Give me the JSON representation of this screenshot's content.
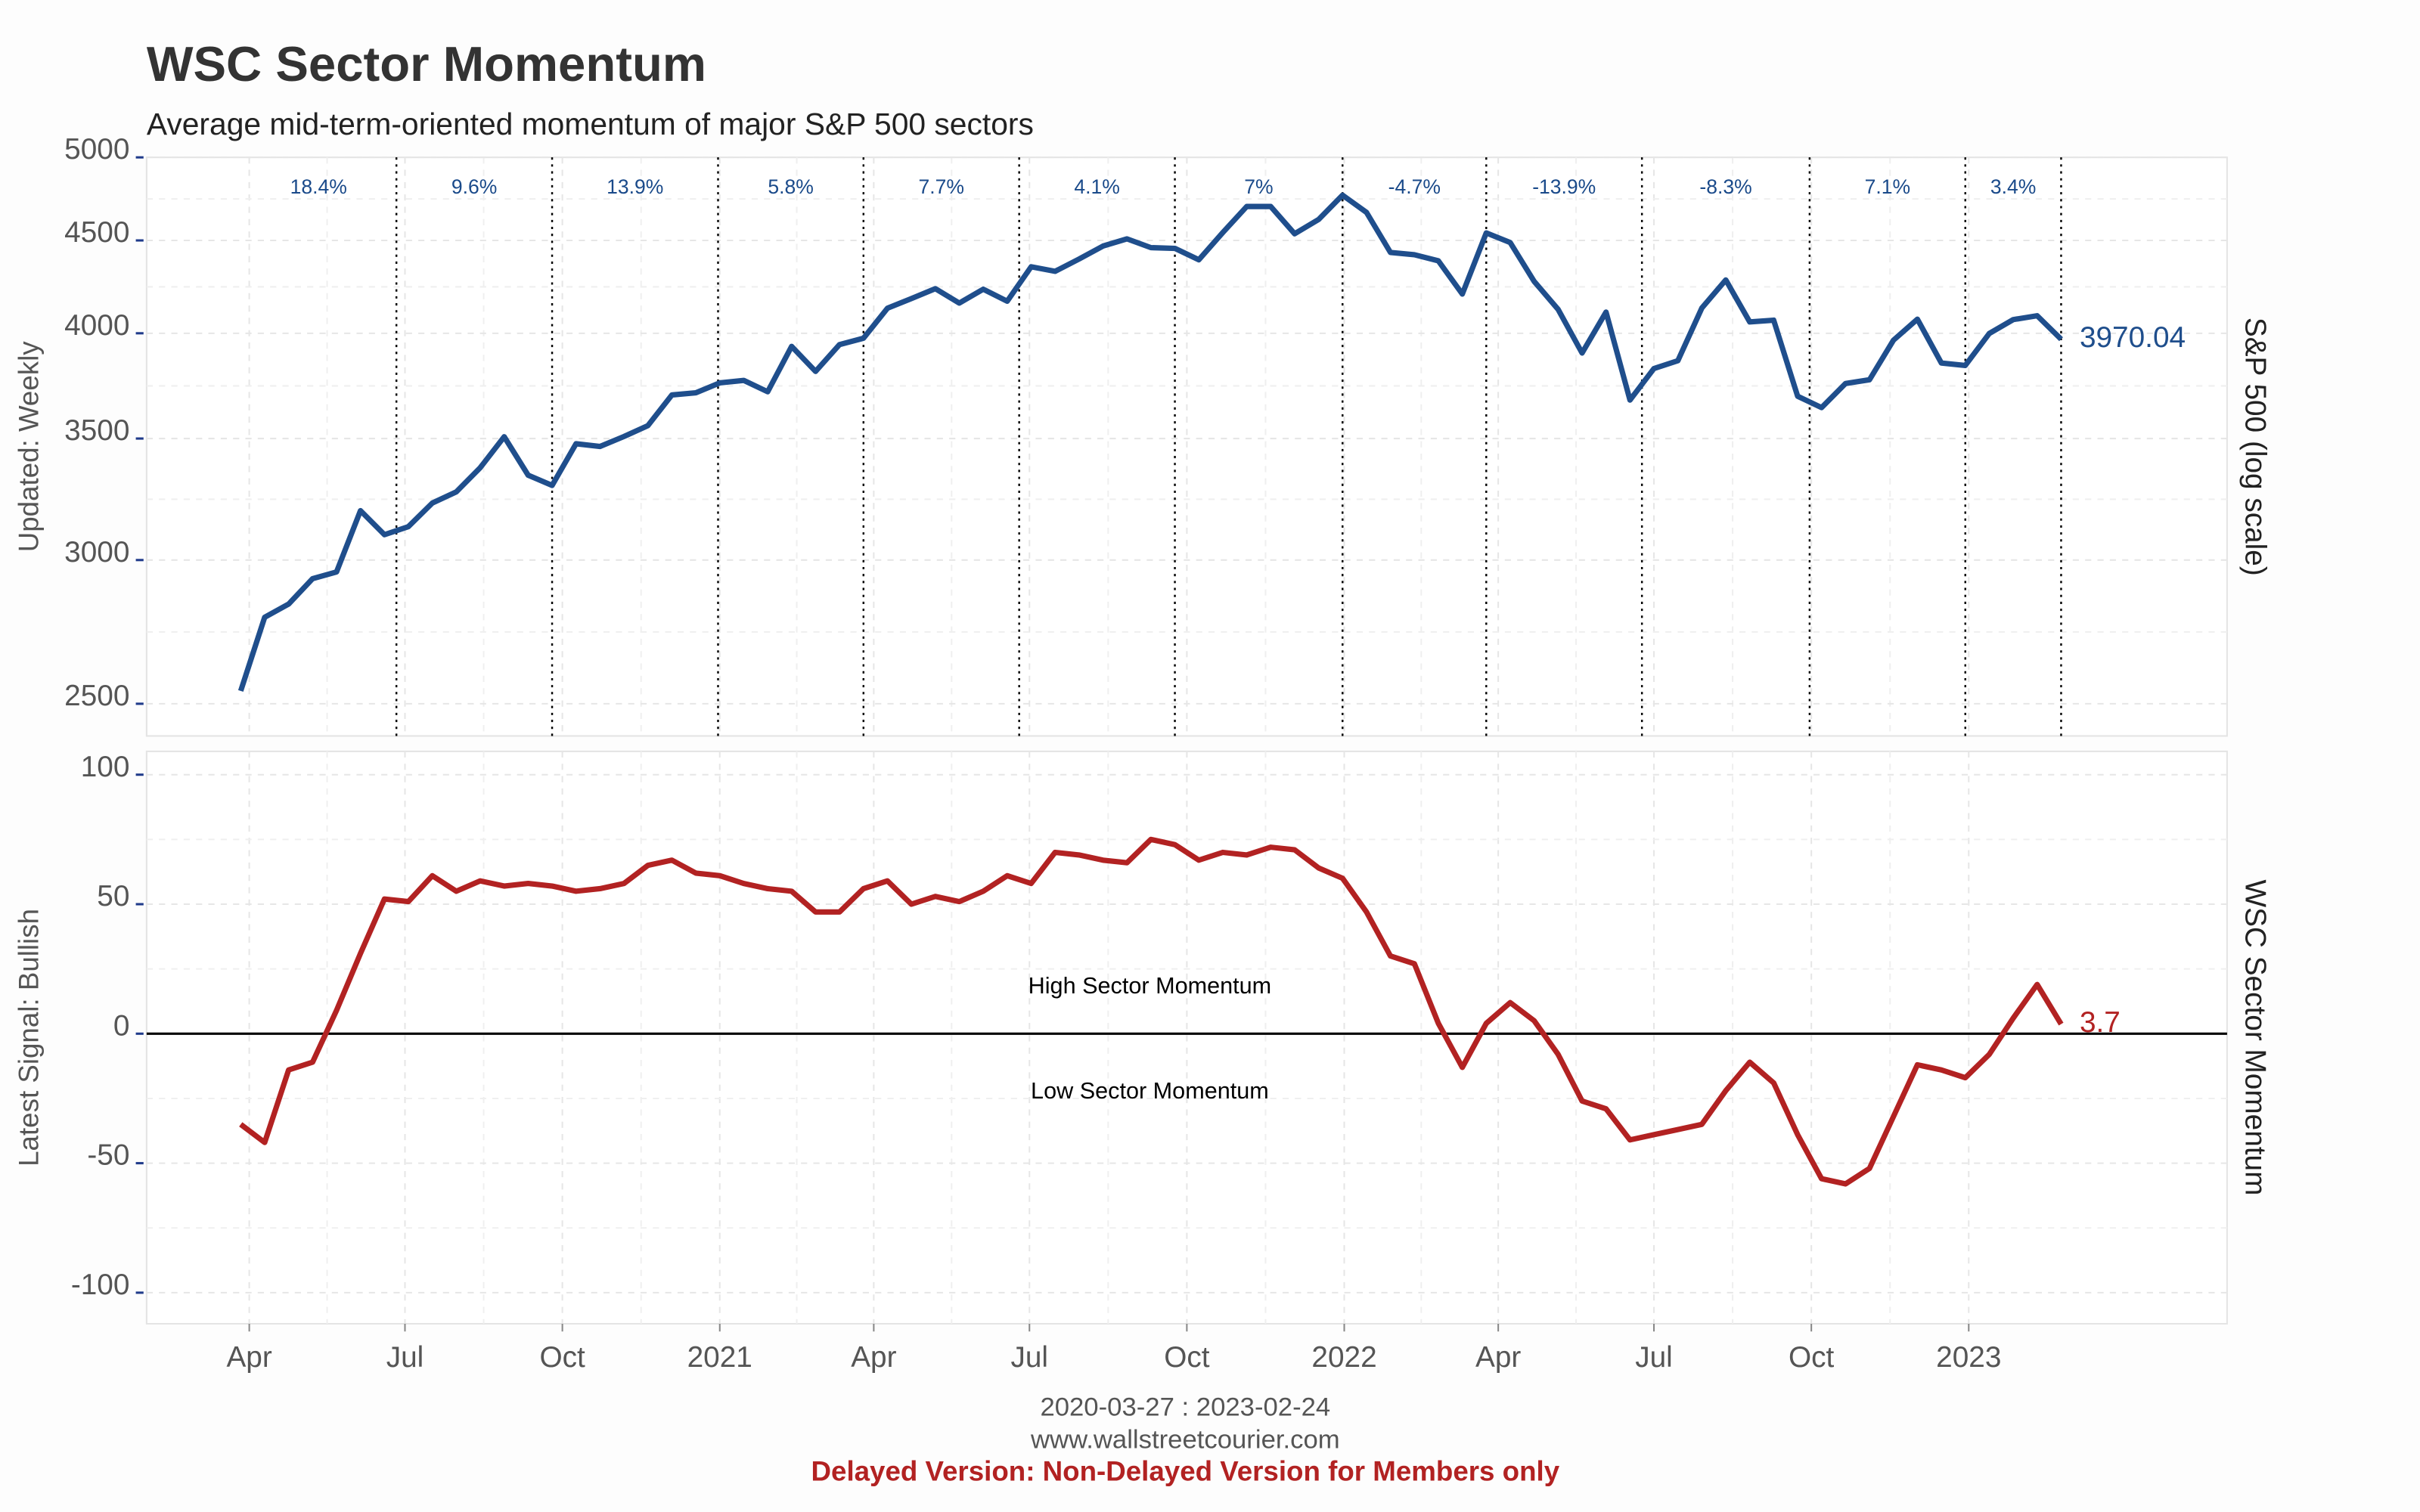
{
  "title": "WSC Sector Momentum",
  "subtitle": "Average mid-term-oriented momentum of major S&P 500 sectors",
  "footer": {
    "date_range": "2020-03-27 : 2023-02-24",
    "source": "www.wallstreetcourier.com",
    "notice": "Delayed Version: Non-Delayed Version for Members only"
  },
  "chart_data": [
    {
      "type": "line",
      "y_label": "Updated: Weekly",
      "y_label_right": "S&P 500 (log scale)",
      "log_scale": true,
      "grid": true,
      "xlim": [
        "2020-02-01",
        "2023-06-01"
      ],
      "ylim": [
        2400,
        5000
      ],
      "yticks": [
        2500,
        3000,
        3500,
        4000,
        4500,
        5000
      ],
      "x": [
        "2020-03-27",
        "2020-04-10",
        "2020-04-24",
        "2020-05-08",
        "2020-05-22",
        "2020-06-05",
        "2020-06-19",
        "2020-07-03",
        "2020-07-17",
        "2020-07-31",
        "2020-08-14",
        "2020-08-28",
        "2020-09-11",
        "2020-09-25",
        "2020-10-09",
        "2020-10-23",
        "2020-11-06",
        "2020-11-20",
        "2020-12-04",
        "2020-12-18",
        "2021-01-01",
        "2021-01-15",
        "2021-01-29",
        "2021-02-12",
        "2021-02-26",
        "2021-03-12",
        "2021-03-26",
        "2021-04-09",
        "2021-04-23",
        "2021-05-07",
        "2021-05-21",
        "2021-06-04",
        "2021-06-18",
        "2021-07-02",
        "2021-07-16",
        "2021-07-30",
        "2021-08-13",
        "2021-08-27",
        "2021-09-10",
        "2021-09-24",
        "2021-10-08",
        "2021-10-22",
        "2021-11-05",
        "2021-11-19",
        "2021-12-03",
        "2021-12-17",
        "2021-12-31",
        "2022-01-14",
        "2022-01-28",
        "2022-02-11",
        "2022-02-25",
        "2022-03-11",
        "2022-03-25",
        "2022-04-08",
        "2022-04-22",
        "2022-05-06",
        "2022-05-20",
        "2022-06-03",
        "2022-06-17",
        "2022-07-01",
        "2022-07-15",
        "2022-07-29",
        "2022-08-12",
        "2022-08-26",
        "2022-09-09",
        "2022-09-23",
        "2022-10-07",
        "2022-10-21",
        "2022-11-04",
        "2022-11-18",
        "2022-12-02",
        "2022-12-16",
        "2022-12-30",
        "2023-01-13",
        "2023-01-27",
        "2023-02-10",
        "2023-02-24"
      ],
      "series": [
        {
          "color": "#1f4e8c",
          "values": [
            2541,
            2790,
            2837,
            2930,
            2955,
            3194,
            3098,
            3130,
            3225,
            3271,
            3373,
            3508,
            3341,
            3298,
            3477,
            3465,
            3509,
            3558,
            3699,
            3709,
            3756,
            3768,
            3714,
            3934,
            3811,
            3943,
            3975,
            4129,
            4180,
            4233,
            4156,
            4230,
            4166,
            4352,
            4327,
            4395,
            4468,
            4509,
            4459,
            4455,
            4391,
            4545,
            4698,
            4698,
            4538,
            4621,
            4766,
            4663,
            4432,
            4419,
            4385,
            4204,
            4543,
            4488,
            4272,
            4123,
            3901,
            4109,
            3675,
            3825,
            3863,
            4130,
            4280,
            4058,
            4067,
            3693,
            3640,
            3753,
            3771,
            3965,
            4072,
            3852,
            3840,
            3999,
            4070,
            4090,
            3970.04
          ]
        }
      ],
      "periods": {
        "ends": [
          "2020-06-26",
          "2020-09-25",
          "2020-12-31",
          "2021-03-26",
          "2021-06-25",
          "2021-09-24",
          "2021-12-31",
          "2022-03-25",
          "2022-06-24",
          "2022-09-30",
          "2022-12-30",
          "2023-02-24"
        ],
        "values": [
          18.4,
          9.6,
          13.9,
          5.8,
          7.7,
          4.1,
          7,
          -4.7,
          -13.9,
          -8.3,
          7.1,
          3.4
        ],
        "value_labels": [
          "18.4%",
          "9.6%",
          "13.9%",
          "5.8%",
          "7.7%",
          "4.1%",
          "7%",
          "-4.7%",
          "-13.9%",
          "-8.3%",
          "7.1%",
          "3.4%"
        ]
      }
    },
    {
      "type": "line",
      "y_label": "Latest Signal: Bullish",
      "y_label_right": "WSC Sector Momentum",
      "grid": true,
      "annotations": [
        "High Sector Momentum",
        "Low Sector Momentum"
      ],
      "xlim": [
        "2020-02-01",
        "2023-06-01"
      ],
      "xticks": [
        {
          "value": "2020-04-01",
          "label": "Apr"
        },
        {
          "value": "2020-07-01",
          "label": "Jul"
        },
        {
          "value": "2020-10-01",
          "label": "Oct"
        },
        {
          "value": "2021-01-01",
          "label": "2021"
        },
        {
          "value": "2021-04-01",
          "label": "Apr"
        },
        {
          "value": "2021-07-01",
          "label": "Jul"
        },
        {
          "value": "2021-10-01",
          "label": "Oct"
        },
        {
          "value": "2022-01-01",
          "label": "2022"
        },
        {
          "value": "2022-04-01",
          "label": "Apr"
        },
        {
          "value": "2022-07-01",
          "label": "Jul"
        },
        {
          "value": "2022-10-01",
          "label": "Oct"
        },
        {
          "value": "2023-01-01",
          "label": "2023"
        }
      ],
      "ylim": [
        -112,
        109
      ],
      "yticks": [
        -100,
        -50,
        0,
        50,
        100
      ],
      "x": [
        "2020-03-27",
        "2020-04-10",
        "2020-04-24",
        "2020-05-08",
        "2020-05-22",
        "2020-06-05",
        "2020-06-19",
        "2020-07-03",
        "2020-07-17",
        "2020-07-31",
        "2020-08-14",
        "2020-08-28",
        "2020-09-11",
        "2020-09-25",
        "2020-10-09",
        "2020-10-23",
        "2020-11-06",
        "2020-11-20",
        "2020-12-04",
        "2020-12-18",
        "2021-01-01",
        "2021-01-15",
        "2021-01-29",
        "2021-02-12",
        "2021-02-26",
        "2021-03-12",
        "2021-03-26",
        "2021-04-09",
        "2021-04-23",
        "2021-05-07",
        "2021-05-21",
        "2021-06-04",
        "2021-06-18",
        "2021-07-02",
        "2021-07-16",
        "2021-07-30",
        "2021-08-13",
        "2021-08-27",
        "2021-09-10",
        "2021-09-24",
        "2021-10-08",
        "2021-10-22",
        "2021-11-05",
        "2021-11-19",
        "2021-12-03",
        "2021-12-17",
        "2021-12-31",
        "2022-01-14",
        "2022-01-28",
        "2022-02-11",
        "2022-02-25",
        "2022-03-11",
        "2022-03-25",
        "2022-04-08",
        "2022-04-22",
        "2022-05-06",
        "2022-05-20",
        "2022-06-03",
        "2022-06-17",
        "2022-07-01",
        "2022-07-15",
        "2022-07-29",
        "2022-08-12",
        "2022-08-26",
        "2022-09-09",
        "2022-09-23",
        "2022-10-07",
        "2022-10-21",
        "2022-11-04",
        "2022-11-18",
        "2022-12-02",
        "2022-12-16",
        "2022-12-30",
        "2023-01-13",
        "2023-01-27",
        "2023-02-10",
        "2023-02-24"
      ],
      "series": [
        {
          "color": "#b22222",
          "values": [
            -35,
            -42,
            -14,
            -11,
            9,
            31,
            52,
            51,
            61,
            55,
            59,
            57,
            58,
            57,
            55,
            56,
            58,
            65,
            67,
            62,
            61,
            58,
            56,
            55,
            47,
            47,
            56,
            59,
            50,
            53,
            51,
            55,
            61,
            58,
            70,
            69,
            67,
            66,
            75,
            73,
            67,
            70,
            69,
            72,
            71,
            64,
            60,
            47,
            30,
            27,
            4,
            -13,
            4,
            12,
            5,
            -8,
            -26,
            -29,
            -41,
            -39,
            -37,
            -35,
            -22,
            -11,
            -19,
            -39,
            -56,
            -58,
            -52,
            -32,
            -12,
            -14,
            -17,
            -8,
            6,
            19,
            3.7
          ]
        }
      ]
    }
  ]
}
